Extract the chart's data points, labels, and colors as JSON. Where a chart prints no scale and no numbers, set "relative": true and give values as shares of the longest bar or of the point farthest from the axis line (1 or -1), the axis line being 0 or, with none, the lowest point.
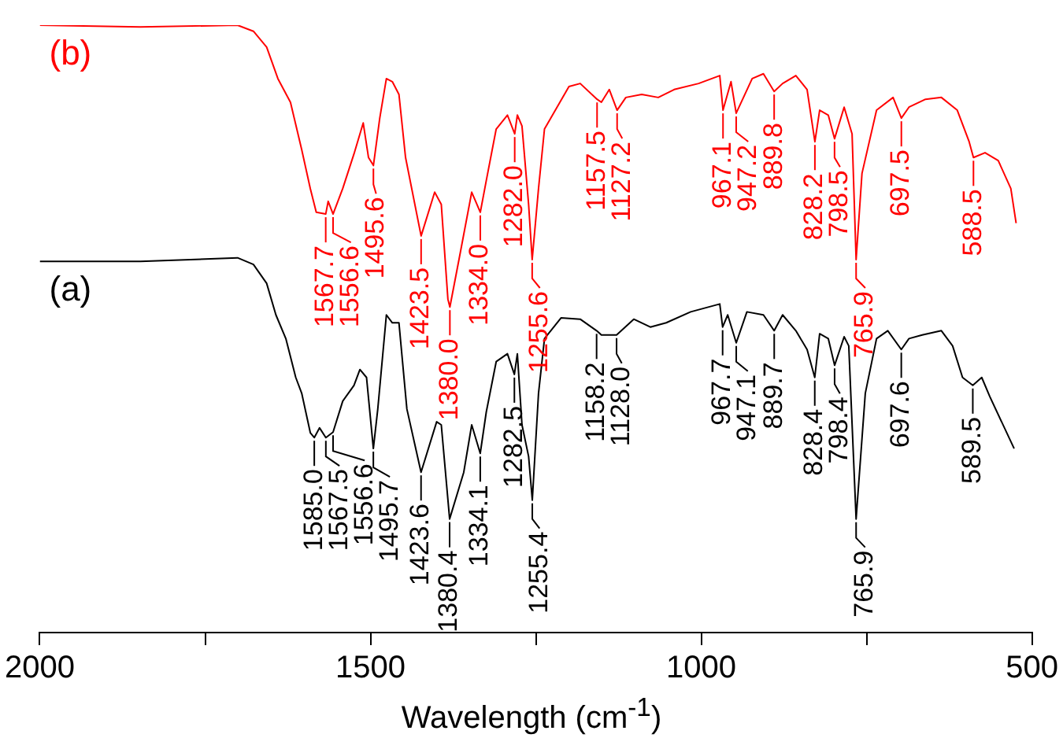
{
  "chart_data": {
    "type": "line",
    "xlabel": "Wavelength (cm$^{-1}$)",
    "relative": true,
    "legend": false,
    "grid": false,
    "marker": "none",
    "xlim": [
      2000,
      500
    ],
    "xticks": [
      2000,
      {
        "value": 1750,
        "label": null
      },
      1500,
      {
        "value": 1250,
        "label": null
      },
      1000,
      {
        "value": 750,
        "label": null
      },
      500
    ],
    "series": [
      {
        "name": "(b)",
        "color": "#ff0000",
        "x": [
          2000,
          1848,
          1701,
          1677,
          1657,
          1640,
          1621,
          1604,
          1591,
          1582,
          1567.7,
          1564,
          1556.6,
          1542,
          1525,
          1511,
          1503,
          1495.6,
          1486,
          1476,
          1467,
          1457,
          1447,
          1423.5,
          1403,
          1393,
          1383,
          1380.0,
          1364,
          1347,
          1334.0,
          1325,
          1310,
          1293,
          1282.0,
          1278,
          1271,
          1261,
          1255.6,
          1246,
          1237,
          1200,
          1183,
          1157.5,
          1151,
          1139,
          1127.2,
          1114,
          1090,
          1065,
          1041,
          1004,
          972,
          967.1,
          955,
          947.2,
          923,
          906,
          889.8,
          877,
          857,
          840,
          828.2,
          821,
          808,
          798.5,
          784,
          772,
          765.9,
          757,
          735,
          710,
          697.5,
          686,
          661,
          637,
          613,
          595,
          588.5,
          571,
          551,
          532,
          524
        ],
        "values": [
          1.0,
          0.997,
          1.0,
          0.99,
          0.964,
          0.912,
          0.873,
          0.795,
          0.731,
          0.692,
          0.689,
          0.71,
          0.689,
          0.731,
          0.788,
          0.839,
          0.782,
          0.769,
          0.847,
          0.912,
          0.907,
          0.886,
          0.782,
          0.653,
          0.725,
          0.705,
          0.549,
          0.536,
          0.627,
          0.725,
          0.692,
          0.744,
          0.829,
          0.852,
          0.821,
          0.852,
          0.834,
          0.705,
          0.614,
          0.731,
          0.829,
          0.899,
          0.904,
          0.878,
          0.873,
          0.894,
          0.86,
          0.881,
          0.886,
          0.881,
          0.894,
          0.904,
          0.917,
          0.86,
          0.907,
          0.855,
          0.912,
          0.92,
          0.891,
          0.904,
          0.917,
          0.894,
          0.808,
          0.86,
          0.852,
          0.813,
          0.865,
          0.821,
          0.614,
          0.756,
          0.86,
          0.881,
          0.847,
          0.865,
          0.878,
          0.881,
          0.86,
          0.808,
          0.782,
          0.79,
          0.777,
          0.731,
          0.674
        ]
      },
      {
        "name": "(a)",
        "color": "#000000",
        "x": [
          2000,
          1848,
          1701,
          1677,
          1657,
          1643,
          1628,
          1613,
          1604,
          1591,
          1585.0,
          1577,
          1567.5,
          1556.6,
          1542,
          1525,
          1516,
          1506,
          1495.7,
          1489,
          1476,
          1467,
          1457,
          1445,
          1423.6,
          1400,
          1393,
          1380.4,
          1359,
          1347,
          1334.1,
          1325,
          1310,
          1293,
          1282.5,
          1278,
          1271,
          1261,
          1255.4,
          1246,
          1237,
          1212,
          1183,
          1158.2,
          1151,
          1128.0,
          1102,
          1077,
          1053,
          1016,
          972,
          967.7,
          960,
          947.1,
          931,
          906,
          889.7,
          877,
          857,
          840,
          828.4,
          821,
          808,
          798.4,
          784,
          777,
          765.9,
          752,
          735,
          718,
          697.6,
          686,
          666,
          637,
          620,
          605,
          589.5,
          576,
          564,
          527
        ],
        "values": [
          0.611,
          0.611,
          0.617,
          0.606,
          0.575,
          0.523,
          0.484,
          0.42,
          0.394,
          0.329,
          0.321,
          0.337,
          0.321,
          0.33,
          0.381,
          0.407,
          0.433,
          0.42,
          0.303,
          0.368,
          0.523,
          0.51,
          0.51,
          0.368,
          0.264,
          0.347,
          0.342,
          0.187,
          0.264,
          0.342,
          0.295,
          0.363,
          0.446,
          0.459,
          0.425,
          0.459,
          0.342,
          0.29,
          0.218,
          0.394,
          0.484,
          0.518,
          0.516,
          0.497,
          0.49,
          0.49,
          0.516,
          0.503,
          0.51,
          0.528,
          0.541,
          0.503,
          0.523,
          0.477,
          0.528,
          0.523,
          0.497,
          0.523,
          0.497,
          0.466,
          0.42,
          0.492,
          0.484,
          0.44,
          0.487,
          0.472,
          0.187,
          0.394,
          0.484,
          0.497,
          0.466,
          0.484,
          0.49,
          0.497,
          0.472,
          0.42,
          0.407,
          0.42,
          0.389,
          0.303
        ]
      }
    ],
    "annotations": [
      {
        "text": "1567.7",
        "x": 1567.7,
        "y": 0.689
      },
      {
        "text": "1556.6",
        "x": 1556.6,
        "y": 0.689
      },
      {
        "text": "1495.6",
        "x": 1495.6,
        "y": 0.769
      },
      {
        "text": "1423.5",
        "x": 1423.5,
        "y": 0.653
      },
      {
        "text": "1380.0",
        "x": 1380.0,
        "y": 0.536
      },
      {
        "text": "1334.0",
        "x": 1334.0,
        "y": 0.692
      },
      {
        "text": "1282.0",
        "x": 1282.0,
        "y": 0.821
      },
      {
        "text": "1255.6",
        "x": 1255.6,
        "y": 0.614
      },
      {
        "text": "1157.5",
        "x": 1157.5,
        "y": 0.878
      },
      {
        "text": "1127.2",
        "x": 1127.2,
        "y": 0.86
      },
      {
        "text": "967.1",
        "x": 967.1,
        "y": 0.86
      },
      {
        "text": "947.2",
        "x": 947.2,
        "y": 0.855
      },
      {
        "text": "889.8",
        "x": 889.8,
        "y": 0.891
      },
      {
        "text": "828.2",
        "x": 828.2,
        "y": 0.808
      },
      {
        "text": "798.5",
        "x": 798.5,
        "y": 0.813
      },
      {
        "text": "765.9",
        "x": 765.9,
        "y": 0.614
      },
      {
        "text": "697.5",
        "x": 697.5,
        "y": 0.847
      },
      {
        "text": "588.5",
        "x": 588.5,
        "y": 0.782
      },
      {
        "text": "1585.0",
        "x": 1585.0,
        "y": 0.321
      },
      {
        "text": "1567.5",
        "x": 1567.5,
        "y": 0.321
      },
      {
        "text": "1556.6",
        "x": 1556.6,
        "y": 0.33
      },
      {
        "text": "1495.7",
        "x": 1495.7,
        "y": 0.303
      },
      {
        "text": "1423.6",
        "x": 1423.6,
        "y": 0.264
      },
      {
        "text": "1380.4",
        "x": 1380.4,
        "y": 0.187
      },
      {
        "text": "1334.1",
        "x": 1334.1,
        "y": 0.295
      },
      {
        "text": "1282.5",
        "x": 1282.5,
        "y": 0.425
      },
      {
        "text": "1255.4",
        "x": 1255.4,
        "y": 0.218
      },
      {
        "text": "1158.2",
        "x": 1158.2,
        "y": 0.497
      },
      {
        "text": "1128.0",
        "x": 1128.0,
        "y": 0.49
      },
      {
        "text": "967.7",
        "x": 967.7,
        "y": 0.503
      },
      {
        "text": "947.1",
        "x": 947.1,
        "y": 0.477
      },
      {
        "text": "889.7",
        "x": 889.7,
        "y": 0.497
      },
      {
        "text": "828.4",
        "x": 828.4,
        "y": 0.42
      },
      {
        "text": "798.4",
        "x": 798.4,
        "y": 0.44
      },
      {
        "text": "765.9",
        "x": 765.9,
        "y": 0.187
      },
      {
        "text": "697.6",
        "x": 697.6,
        "y": 0.466
      },
      {
        "text": "589.5",
        "x": 589.5,
        "y": 0.407
      }
    ]
  }
}
